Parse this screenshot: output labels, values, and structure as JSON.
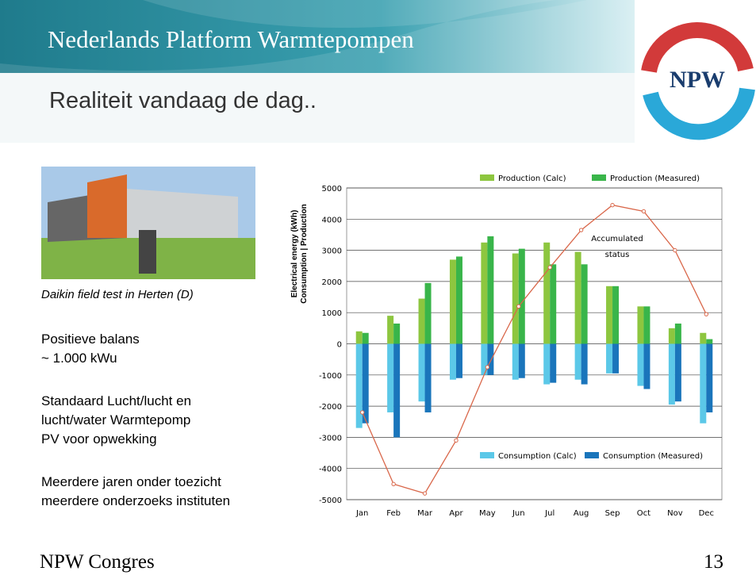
{
  "title": "Nederlands Platform Warmtepompen",
  "subtitle": "Realiteit vandaag de dag..",
  "logo": "NPW",
  "caption": "Daikin field test in Herten (D)",
  "bullets": [
    [
      "Positieve balans",
      "~ 1.000 kWu"
    ],
    [
      "Standaard Lucht/lucht en",
      "lucht/water Warmtepomp",
      "PV voor opwekking"
    ],
    [
      "Meerdere jaren onder toezicht",
      "meerdere onderzoeks instituten"
    ]
  ],
  "footer": "NPW Congres",
  "page_number": "13",
  "chart_data": {
    "type": "bar",
    "ylabel": [
      "Electrical energy (kWh)",
      "Consumption | Production"
    ],
    "annotation": [
      "Accumulated",
      "status"
    ],
    "categories": [
      "Jan",
      "Feb",
      "Mar",
      "Apr",
      "May",
      "Jun",
      "Jul",
      "Aug",
      "Sep",
      "Oct",
      "Nov",
      "Dec"
    ],
    "series": [
      {
        "name": "Production (Calc)",
        "type": "bar",
        "color": "#8dc63f",
        "values": [
          400,
          900,
          1450,
          2700,
          3250,
          2900,
          3250,
          2950,
          1850,
          1200,
          500,
          350
        ]
      },
      {
        "name": "Production (Measured)",
        "type": "bar",
        "color": "#39b54a",
        "values": [
          350,
          650,
          1950,
          2800,
          3450,
          3050,
          2550,
          2550,
          1850,
          1200,
          650,
          150
        ]
      },
      {
        "name": "Consumption (Calc)",
        "type": "bar",
        "color": "#5bc8e8",
        "values": [
          -2700,
          -2200,
          -1850,
          -1150,
          -1000,
          -1150,
          -1300,
          -1150,
          -950,
          -1350,
          -1950,
          -2550
        ]
      },
      {
        "name": "Consumption (Measured)",
        "type": "bar",
        "color": "#1a75bb",
        "values": [
          -2550,
          -3000,
          -2200,
          -1100,
          -1000,
          -1100,
          -1250,
          -1300,
          -950,
          -1450,
          -1850,
          -2200
        ]
      },
      {
        "type": "line",
        "color": "#d9674a",
        "values": [
          -2200,
          -4500,
          -4800,
          -3100,
          -750,
          1200,
          2450,
          3650,
          4450,
          4250,
          3000,
          950
        ]
      }
    ],
    "ylim": [
      -5000,
      5000
    ],
    "yticks": [
      -5000,
      -4000,
      -3000,
      -2000,
      -1000,
      0,
      1000,
      2000,
      3000,
      4000,
      5000
    ],
    "grid": true
  }
}
